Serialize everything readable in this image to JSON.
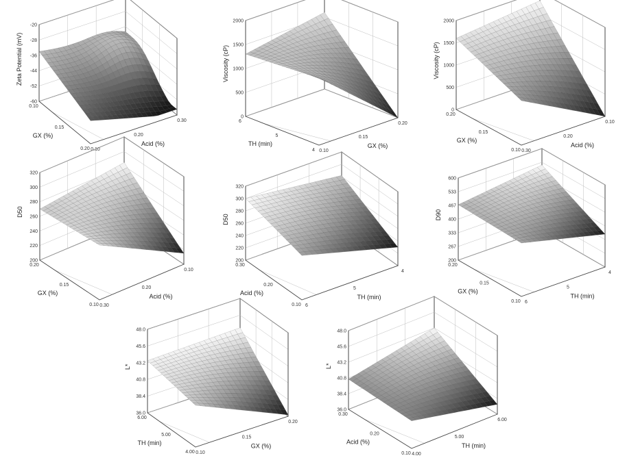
{
  "chart_data": [
    {
      "type": "surface",
      "id": "zeta",
      "zlabel": "Zeta Potential (mV)",
      "zticks": [
        "-20",
        "-28",
        "-36",
        "-44",
        "-52",
        "-60"
      ],
      "zlim": [
        -60,
        -20
      ],
      "xlabel": "GX (%)",
      "xticks": [
        "0.10",
        "0.15",
        "0.20"
      ],
      "xlim": [
        0.1,
        0.2
      ],
      "ylabel": "Acid (%)",
      "yticks": [
        "0.10",
        "0.20",
        "0.30"
      ],
      "ylim": [
        0.1,
        0.3
      ],
      "surface": {
        "zmin": -57,
        "zmax": -25,
        "corners": [
          -31,
          -39,
          -57,
          -45
        ],
        "peak": [
          0.8,
          0.3
        ]
      }
    },
    {
      "type": "surface",
      "id": "visc1",
      "zlabel": "Viscosity (cP)",
      "zticks": [
        "2000",
        "1500",
        "1000",
        "500",
        "0"
      ],
      "zlim": [
        0,
        2000
      ],
      "xlabel": "TH (min)",
      "xticks": [
        "6",
        "5",
        "4"
      ],
      "xlim": [
        6,
        4
      ],
      "ylabel": "GX (%)",
      "yticks": [
        "0.10",
        "0.15",
        "0.20"
      ],
      "ylim": [
        0.1,
        0.2
      ],
      "surface": {
        "zmin": 0,
        "zmax": 1800,
        "corners": [
          1300,
          1600,
          0,
          1400
        ]
      }
    },
    {
      "type": "surface",
      "id": "visc2",
      "zlabel": "Viscosity (cP)",
      "zticks": [
        "2000",
        "1500",
        "1000",
        "500",
        "0"
      ],
      "zlim": [
        0,
        2000
      ],
      "xlabel": "GX (%)",
      "xticks": [
        "0.20",
        "0.15",
        "0.10"
      ],
      "xlim": [
        0.2,
        0.1
      ],
      "ylabel": "Acid (%)",
      "yticks": [
        "0.30",
        "0.20",
        "0.10"
      ],
      "ylim": [
        0.3,
        0.1
      ],
      "surface": {
        "zmin": 0,
        "zmax": 1800,
        "corners": [
          1600,
          1800,
          0,
          1000
        ]
      }
    },
    {
      "type": "surface",
      "id": "d50a",
      "zlabel": "D50",
      "zticks": [
        "320",
        "300",
        "280",
        "260",
        "240",
        "220",
        "200"
      ],
      "zlim": [
        200,
        320
      ],
      "xlabel": "GX (%)",
      "xticks": [
        "0.20",
        "0.15",
        "0.10"
      ],
      "xlim": [
        0.2,
        0.1
      ],
      "ylabel": "Acid (%)",
      "yticks": [
        "0.30",
        "0.20",
        "0.10"
      ],
      "ylim": [
        0.3,
        0.1
      ],
      "surface": {
        "zmin": 215,
        "zmax": 285,
        "corners": [
          270,
          285,
          215,
          275
        ]
      }
    },
    {
      "type": "surface",
      "id": "d50b",
      "zlabel": "D50",
      "zticks": [
        "320",
        "300",
        "280",
        "260",
        "240",
        "220",
        "200"
      ],
      "zlim": [
        200,
        320
      ],
      "xlabel": "Acid (%)",
      "xticks": [
        "0.30",
        "0.20",
        "0.10"
      ],
      "xlim": [
        0.3,
        0.1
      ],
      "ylabel": "TH (min)",
      "yticks": [
        "6",
        "5",
        "4"
      ],
      "ylim": [
        6,
        4
      ],
      "surface": {
        "zmin": 230,
        "zmax": 300,
        "corners": [
          300,
          282,
          230,
          272
        ]
      }
    },
    {
      "type": "surface",
      "id": "d90",
      "zlabel": "D90",
      "zticks": [
        "600",
        "533",
        "467",
        "400",
        "333",
        "267",
        "200"
      ],
      "zlim": [
        200,
        600
      ],
      "xlabel": "GX (%)",
      "xticks": [
        "0.20",
        "0.15",
        "0.10"
      ],
      "xlim": [
        0.2,
        0.1
      ],
      "ylabel": "TH (min)",
      "yticks": [
        "6",
        "5",
        "4"
      ],
      "ylim": [
        6,
        4
      ],
      "surface": {
        "zmin": 360,
        "zmax": 520,
        "corners": [
          470,
          520,
          360,
          460
        ]
      }
    },
    {
      "type": "surface",
      "id": "l1",
      "zlabel": "L*",
      "zticks": [
        "48.0",
        "45.6",
        "43.2",
        "40.8",
        "38.4",
        "36.0"
      ],
      "zlim": [
        36,
        48
      ],
      "xlabel": "TH (min)",
      "xticks": [
        "6.00",
        "5.00",
        "4.00"
      ],
      "xlim": [
        6,
        4
      ],
      "ylabel": "GX (%)",
      "yticks": [
        "0.10",
        "0.15",
        "0.20"
      ],
      "ylim": [
        0.1,
        0.2
      ],
      "surface": {
        "zmin": 36.2,
        "zmax": 43.8,
        "corners": [
          43.5,
          43.8,
          36.2,
          42.0
        ]
      }
    },
    {
      "type": "surface",
      "id": "l2",
      "zlabel": "L*",
      "zticks": [
        "48.0",
        "45.6",
        "43.2",
        "40.8",
        "38.4",
        "36.0"
      ],
      "zlim": [
        36,
        48
      ],
      "xlabel": "Acid (%)",
      "xticks": [
        "0.30",
        "0.20",
        "0.10"
      ],
      "xlim": [
        0.3,
        0.1
      ],
      "ylabel": "TH (min)",
      "yticks": [
        "4.00",
        "5.00",
        "6.00"
      ],
      "ylim": [
        4,
        6
      ],
      "surface": {
        "zmin": 37.5,
        "zmax": 43.2,
        "corners": [
          40.6,
          43.2,
          37.5,
          40.2
        ]
      }
    }
  ]
}
